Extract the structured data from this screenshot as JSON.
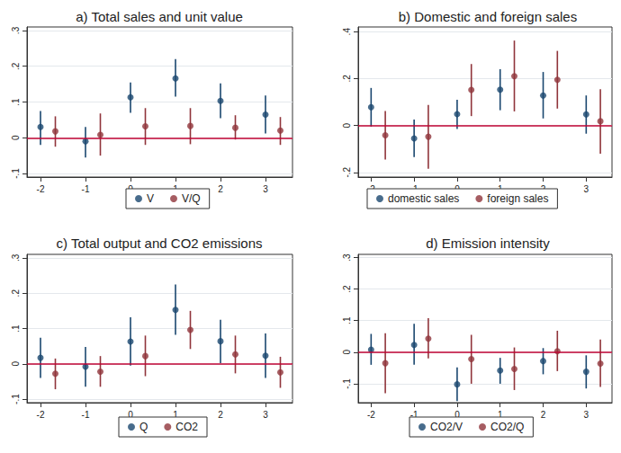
{
  "chart_data": [
    {
      "type": "scatter",
      "title": "a) Total sales and unit value",
      "xlim": [
        -2.3,
        3.6
      ],
      "xticks": [
        -2,
        -1,
        0,
        1,
        2,
        3
      ],
      "ylim": [
        -0.11,
        0.31
      ],
      "yticks": [
        {
          "value": -0.1,
          "label": "-.1"
        },
        0,
        {
          "value": 0.1,
          "label": ".1"
        },
        {
          "value": 0.2,
          "label": ".2"
        },
        {
          "value": 0.3,
          "label": ".3"
        }
      ],
      "hline": 0,
      "grid": true,
      "legend": "bottom",
      "series": [
        {
          "name": "V",
          "color": "#1a476f",
          "x": [
            -2,
            -1,
            0,
            1,
            2,
            3
          ],
          "values": [
            0.03,
            -0.01,
            0.113,
            0.166,
            0.103,
            0.065
          ],
          "lower": [
            -0.02,
            -0.055,
            0.07,
            0.115,
            0.055,
            0.012
          ],
          "upper": [
            0.075,
            0.03,
            0.155,
            0.22,
            0.152,
            0.118
          ]
        },
        {
          "name": "V/Q",
          "color": "#90353b",
          "x": [
            -1.67,
            -0.67,
            0.33,
            1.33,
            2.33,
            3.33
          ],
          "values": [
            0.018,
            0.008,
            0.032,
            0.033,
            0.028,
            0.02
          ],
          "lower": [
            -0.025,
            -0.05,
            -0.02,
            -0.018,
            -0.005,
            -0.02
          ],
          "upper": [
            0.06,
            0.068,
            0.083,
            0.083,
            0.063,
            0.058
          ]
        }
      ]
    },
    {
      "type": "scatter",
      "title": "b) Domestic and foreign sales",
      "xlim": [
        -2.3,
        3.6
      ],
      "xticks": [
        -2,
        -1,
        0,
        1,
        2,
        3
      ],
      "ylim": [
        -0.22,
        0.42
      ],
      "yticks": [
        {
          "value": -0.2,
          "label": "-.2"
        },
        0,
        {
          "value": 0.2,
          "label": ".2"
        },
        {
          "value": 0.4,
          "label": ".4"
        }
      ],
      "hline": 0,
      "grid": true,
      "legend": "bottom",
      "series": [
        {
          "name": "domestic sales",
          "color": "#1a476f",
          "x": [
            -2,
            -1,
            0,
            1,
            2,
            3
          ],
          "values": [
            0.078,
            -0.055,
            0.048,
            0.153,
            0.128,
            0.047
          ],
          "lower": [
            -0.005,
            -0.135,
            -0.015,
            0.065,
            0.03,
            -0.035
          ],
          "upper": [
            0.16,
            0.025,
            0.11,
            0.24,
            0.228,
            0.128
          ]
        },
        {
          "name": "foreign sales",
          "color": "#90353b",
          "x": [
            -1.67,
            -0.67,
            0.33,
            1.33,
            2.33,
            3.33
          ],
          "values": [
            -0.042,
            -0.048,
            0.152,
            0.21,
            0.195,
            0.018
          ],
          "lower": [
            -0.145,
            -0.185,
            0.04,
            0.06,
            0.072,
            -0.12
          ],
          "upper": [
            0.062,
            0.088,
            0.262,
            0.362,
            0.318,
            0.155
          ]
        }
      ]
    },
    {
      "type": "scatter",
      "title": "c) Total output and CO2 emissions",
      "xlim": [
        -2.3,
        3.6
      ],
      "xticks": [
        -2,
        -1,
        0,
        1,
        2,
        3
      ],
      "ylim": [
        -0.11,
        0.31
      ],
      "yticks": [
        {
          "value": -0.1,
          "label": "-.1"
        },
        0,
        {
          "value": 0.1,
          "label": ".1"
        },
        {
          "value": 0.2,
          "label": ".2"
        },
        {
          "value": 0.3,
          "label": ".3"
        }
      ],
      "hline": 0,
      "grid": true,
      "legend": "bottom",
      "series": [
        {
          "name": "Q",
          "color": "#1a476f",
          "x": [
            -2,
            -1,
            0,
            1,
            2,
            3
          ],
          "values": [
            0.017,
            -0.008,
            0.063,
            0.153,
            0.064,
            0.023
          ],
          "lower": [
            -0.04,
            -0.065,
            -0.005,
            0.082,
            0.002,
            -0.04
          ],
          "upper": [
            0.074,
            0.048,
            0.132,
            0.225,
            0.125,
            0.086
          ]
        },
        {
          "name": "CO2",
          "color": "#90353b",
          "x": [
            -1.67,
            -0.67,
            0.33,
            1.33,
            2.33,
            3.33
          ],
          "values": [
            -0.028,
            -0.022,
            0.022,
            0.096,
            0.027,
            -0.024
          ],
          "lower": [
            -0.072,
            -0.065,
            -0.035,
            0.042,
            -0.027,
            -0.068
          ],
          "upper": [
            0.015,
            0.022,
            0.08,
            0.15,
            0.08,
            0.02
          ]
        }
      ]
    },
    {
      "type": "scatter",
      "title": "d) Emission intensity",
      "xlim": [
        -2.3,
        3.6
      ],
      "xticks": [
        -2,
        -1,
        0,
        1,
        2,
        3
      ],
      "ylim": [
        -0.16,
        0.31
      ],
      "yticks": [
        {
          "value": -0.1,
          "label": "-.1"
        },
        0,
        {
          "value": 0.1,
          "label": ".1"
        },
        {
          "value": 0.2,
          "label": ".2"
        },
        {
          "value": 0.3,
          "label": ".3"
        }
      ],
      "hline": 0,
      "grid": true,
      "legend": "bottom",
      "series": [
        {
          "name": "CO2/V",
          "color": "#1a476f",
          "x": [
            -2,
            -1,
            0,
            1,
            2,
            3
          ],
          "values": [
            0.008,
            0.023,
            -0.102,
            -0.058,
            -0.028,
            -0.062
          ],
          "lower": [
            -0.04,
            -0.04,
            -0.155,
            -0.1,
            -0.07,
            -0.115
          ],
          "upper": [
            0.058,
            0.09,
            -0.048,
            -0.018,
            0.013,
            -0.01
          ]
        },
        {
          "name": "CO2/Q",
          "color": "#90353b",
          "x": [
            -1.67,
            -0.67,
            0.33,
            1.33,
            2.33,
            3.33
          ],
          "values": [
            -0.035,
            0.043,
            -0.022,
            -0.053,
            0.003,
            -0.036
          ],
          "lower": [
            -0.13,
            -0.02,
            -0.1,
            -0.12,
            -0.06,
            -0.11
          ],
          "upper": [
            0.06,
            0.108,
            0.055,
            0.015,
            0.068,
            0.04
          ]
        }
      ]
    }
  ]
}
